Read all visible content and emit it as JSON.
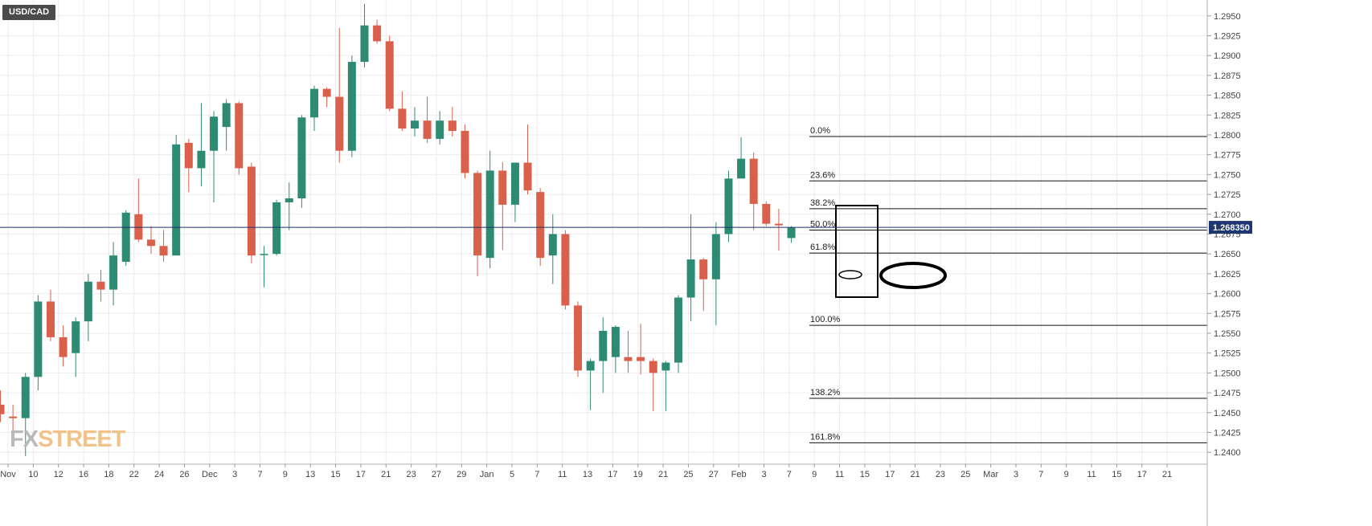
{
  "symbol_tag": "USD/CAD",
  "watermark": {
    "part1": "FX",
    "part2": "STREET"
  },
  "colors": {
    "up": "#2e8b73",
    "down": "#d9604b",
    "price_line": "#1f2f66",
    "price_label_bg": "#1f3670",
    "grid": "#ececec"
  },
  "current_price_label": "1.268350",
  "chart_data": {
    "type": "candlestick",
    "title": "",
    "xlabel": "",
    "ylabel": "",
    "ylim": [
      1.2385,
      1.297
    ],
    "grid": true,
    "y_ticks": [
      1.295,
      1.2925,
      1.29,
      1.2875,
      1.285,
      1.2825,
      1.28,
      1.2775,
      1.275,
      1.2725,
      1.27,
      1.2675,
      1.265,
      1.2625,
      1.26,
      1.2575,
      1.255,
      1.2525,
      1.25,
      1.2475,
      1.245,
      1.2425,
      1.24
    ],
    "x_tick_labels": [
      "Nov",
      "10",
      "12",
      "16",
      "18",
      "22",
      "24",
      "26",
      "Dec",
      "3",
      "7",
      "9",
      "13",
      "15",
      "17",
      "21",
      "23",
      "27",
      "29",
      "Jan",
      "5",
      "7",
      "11",
      "13",
      "17",
      "19",
      "21",
      "25",
      "27",
      "Feb",
      "3",
      "7",
      "9",
      "11",
      "15",
      "17",
      "21",
      "23",
      "25",
      "Mar",
      "3",
      "7",
      "9",
      "11",
      "15",
      "17",
      "21"
    ],
    "current_price": 1.26835,
    "candles": [
      {
        "o": 1.246,
        "h": 1.2478,
        "l": 1.2438,
        "c": 1.2448
      },
      {
        "o": 1.2445,
        "h": 1.246,
        "l": 1.2425,
        "c": 1.2443
      },
      {
        "o": 1.2443,
        "h": 1.25,
        "l": 1.2395,
        "c": 1.2495
      },
      {
        "o": 1.2495,
        "h": 1.2598,
        "l": 1.2478,
        "c": 1.259
      },
      {
        "o": 1.259,
        "h": 1.2605,
        "l": 1.254,
        "c": 1.2545
      },
      {
        "o": 1.2545,
        "h": 1.256,
        "l": 1.2508,
        "c": 1.252
      },
      {
        "o": 1.2525,
        "h": 1.257,
        "l": 1.2495,
        "c": 1.2565
      },
      {
        "o": 1.2565,
        "h": 1.2625,
        "l": 1.254,
        "c": 1.2615
      },
      {
        "o": 1.2615,
        "h": 1.263,
        "l": 1.259,
        "c": 1.2605
      },
      {
        "o": 1.2605,
        "h": 1.2665,
        "l": 1.2585,
        "c": 1.2648
      },
      {
        "o": 1.264,
        "h": 1.2705,
        "l": 1.2635,
        "c": 1.2702
      },
      {
        "o": 1.27,
        "h": 1.2745,
        "l": 1.2665,
        "c": 1.2668
      },
      {
        "o": 1.2668,
        "h": 1.2685,
        "l": 1.265,
        "c": 1.266
      },
      {
        "o": 1.266,
        "h": 1.268,
        "l": 1.264,
        "c": 1.2648
      },
      {
        "o": 1.2648,
        "h": 1.28,
        "l": 1.2648,
        "c": 1.2788
      },
      {
        "o": 1.279,
        "h": 1.2795,
        "l": 1.2728,
        "c": 1.2758
      },
      {
        "o": 1.2758,
        "h": 1.284,
        "l": 1.2735,
        "c": 1.278
      },
      {
        "o": 1.278,
        "h": 1.283,
        "l": 1.2715,
        "c": 1.2823
      },
      {
        "o": 1.281,
        "h": 1.2845,
        "l": 1.278,
        "c": 1.284
      },
      {
        "o": 1.284,
        "h": 1.2842,
        "l": 1.275,
        "c": 1.2758
      },
      {
        "o": 1.276,
        "h": 1.2765,
        "l": 1.2638,
        "c": 1.2648
      },
      {
        "o": 1.265,
        "h": 1.266,
        "l": 1.2608,
        "c": 1.265
      },
      {
        "o": 1.265,
        "h": 1.2718,
        "l": 1.2648,
        "c": 1.2715
      },
      {
        "o": 1.2715,
        "h": 1.274,
        "l": 1.268,
        "c": 1.272
      },
      {
        "o": 1.272,
        "h": 1.2825,
        "l": 1.2708,
        "c": 1.2822
      },
      {
        "o": 1.2822,
        "h": 1.2862,
        "l": 1.2805,
        "c": 1.2858
      },
      {
        "o": 1.2858,
        "h": 1.286,
        "l": 1.2835,
        "c": 1.2848
      },
      {
        "o": 1.2848,
        "h": 1.2935,
        "l": 1.2765,
        "c": 1.278
      },
      {
        "o": 1.278,
        "h": 1.29,
        "l": 1.2772,
        "c": 1.2892
      },
      {
        "o": 1.2892,
        "h": 1.2965,
        "l": 1.2885,
        "c": 1.2938
      },
      {
        "o": 1.2938,
        "h": 1.2945,
        "l": 1.2915,
        "c": 1.2918
      },
      {
        "o": 1.2918,
        "h": 1.2925,
        "l": 1.283,
        "c": 1.2833
      },
      {
        "o": 1.2833,
        "h": 1.2855,
        "l": 1.2805,
        "c": 1.2808
      },
      {
        "o": 1.2808,
        "h": 1.2835,
        "l": 1.2798,
        "c": 1.2818
      },
      {
        "o": 1.2818,
        "h": 1.2848,
        "l": 1.279,
        "c": 1.2795
      },
      {
        "o": 1.2795,
        "h": 1.283,
        "l": 1.2788,
        "c": 1.2818
      },
      {
        "o": 1.2818,
        "h": 1.2835,
        "l": 1.2798,
        "c": 1.2805
      },
      {
        "o": 1.2805,
        "h": 1.2813,
        "l": 1.2745,
        "c": 1.2752
      },
      {
        "o": 1.2752,
        "h": 1.2755,
        "l": 1.2622,
        "c": 1.2648
      },
      {
        "o": 1.2645,
        "h": 1.278,
        "l": 1.2632,
        "c": 1.2755
      },
      {
        "o": 1.2755,
        "h": 1.2766,
        "l": 1.2655,
        "c": 1.2712
      },
      {
        "o": 1.2712,
        "h": 1.2765,
        "l": 1.269,
        "c": 1.2765
      },
      {
        "o": 1.2765,
        "h": 1.2813,
        "l": 1.2725,
        "c": 1.273
      },
      {
        "o": 1.2728,
        "h": 1.2733,
        "l": 1.2635,
        "c": 1.2645
      },
      {
        "o": 1.2648,
        "h": 1.27,
        "l": 1.2612,
        "c": 1.2675
      },
      {
        "o": 1.2675,
        "h": 1.268,
        "l": 1.258,
        "c": 1.2585
      },
      {
        "o": 1.2585,
        "h": 1.259,
        "l": 1.2495,
        "c": 1.2503
      },
      {
        "o": 1.2503,
        "h": 1.2518,
        "l": 1.2453,
        "c": 1.2515
      },
      {
        "o": 1.2515,
        "h": 1.257,
        "l": 1.2475,
        "c": 1.2553
      },
      {
        "o": 1.252,
        "h": 1.256,
        "l": 1.25,
        "c": 1.2558
      },
      {
        "o": 1.252,
        "h": 1.2553,
        "l": 1.25,
        "c": 1.2515
      },
      {
        "o": 1.252,
        "h": 1.2562,
        "l": 1.2498,
        "c": 1.2515
      },
      {
        "o": 1.2515,
        "h": 1.2518,
        "l": 1.2452,
        "c": 1.25
      },
      {
        "o": 1.2503,
        "h": 1.2515,
        "l": 1.2452,
        "c": 1.2513
      },
      {
        "o": 1.2513,
        "h": 1.2598,
        "l": 1.25,
        "c": 1.2595
      },
      {
        "o": 1.2595,
        "h": 1.27,
        "l": 1.2565,
        "c": 1.2643
      },
      {
        "o": 1.2643,
        "h": 1.2645,
        "l": 1.2578,
        "c": 1.2618
      },
      {
        "o": 1.2618,
        "h": 1.269,
        "l": 1.256,
        "c": 1.2675
      },
      {
        "o": 1.2675,
        "h": 1.2755,
        "l": 1.2665,
        "c": 1.2745
      },
      {
        "o": 1.2745,
        "h": 1.2797,
        "l": 1.2745,
        "c": 1.277
      },
      {
        "o": 1.277,
        "h": 1.2778,
        "l": 1.268,
        "c": 1.2713
      },
      {
        "o": 1.2713,
        "h": 1.2716,
        "l": 1.2685,
        "c": 1.2688
      },
      {
        "o": 1.2688,
        "h": 1.2707,
        "l": 1.2654,
        "c": 1.2686
      },
      {
        "o": 1.267,
        "h": 1.2685,
        "l": 1.2664,
        "c": 1.2683
      }
    ],
    "fibonacci": [
      {
        "label": "0.0%",
        "price": 1.2798
      },
      {
        "label": "23.6%",
        "price": 1.2742
      },
      {
        "label": "38.2%",
        "price": 1.2707
      },
      {
        "label": "50.0%",
        "price": 1.268
      },
      {
        "label": "61.8%",
        "price": 1.2651
      },
      {
        "label": "100.0%",
        "price": 1.256
      },
      {
        "label": "138.2%",
        "price": 1.2468
      },
      {
        "label": "161.8%",
        "price": 1.2412
      }
    ]
  }
}
